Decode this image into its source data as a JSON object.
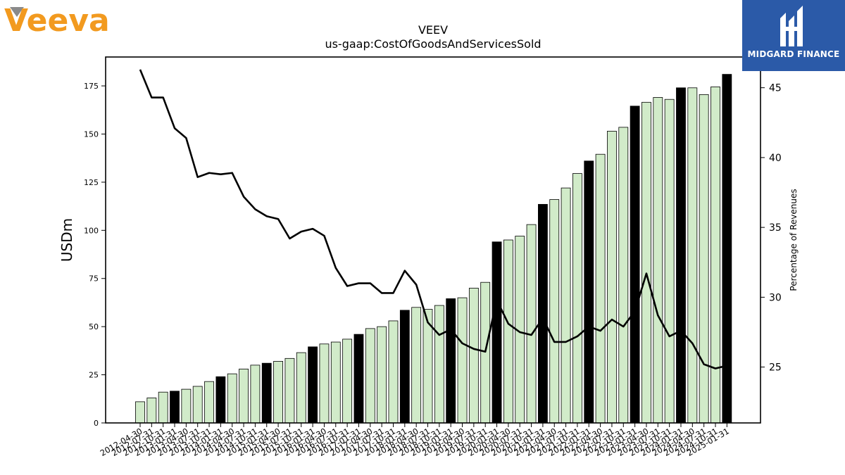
{
  "header": {
    "brand": "Veeva",
    "partner": "MIDGARD FINANCE"
  },
  "colors": {
    "annual_bar": "#000000",
    "quarter_bar": "#d1ebc9",
    "line": "#000000",
    "partner_bg": "#2b5aa8",
    "brand": "#f29a1f"
  },
  "chart_data": {
    "type": "bar",
    "title": "VEEV",
    "subtitle": "us-gaap:CostOfGoodsAndServicesSold",
    "ylabel": "USDm",
    "y2label": "Percentage of Revenues",
    "ylim": [
      0,
      190
    ],
    "y2lim": [
      21,
      47.2
    ],
    "yticks": [
      0,
      25,
      50,
      75,
      100,
      125,
      150,
      175
    ],
    "y2ticks": [
      25,
      30,
      35,
      40,
      45
    ],
    "categories": [
      "2012-04-30",
      "2012-07-31",
      "2012-10-31",
      "2013-01-31",
      "2013-04-30",
      "2013-07-31",
      "2013-10-31",
      "2014-01-31",
      "2014-04-30",
      "2014-07-31",
      "2014-10-31",
      "2015-01-31",
      "2015-04-30",
      "2015-07-31",
      "2015-10-31",
      "2016-01-31",
      "2016-04-30",
      "2016-07-31",
      "2016-10-31",
      "2017-01-31",
      "2017-04-30",
      "2017-07-31",
      "2017-10-31",
      "2018-01-31",
      "2018-04-30",
      "2018-07-31",
      "2018-10-31",
      "2019-01-31",
      "2019-04-30",
      "2019-07-31",
      "2019-10-31",
      "2020-01-31",
      "2020-04-30",
      "2020-07-31",
      "2020-10-31",
      "2021-01-31",
      "2021-04-30",
      "2021-07-31",
      "2021-10-31",
      "2022-01-31",
      "2022-04-30",
      "2022-07-31",
      "2022-10-31",
      "2023-01-31",
      "2023-04-30",
      "2023-07-31",
      "2023-10-31",
      "2024-01-31",
      "2024-04-30",
      "2024-07-31",
      "2024-10-31",
      "2025-01-31"
    ],
    "series": [
      {
        "name": "Cost of goods and services sold",
        "kind": "bar",
        "axis": "left",
        "values": [
          11,
          13,
          16,
          16.5,
          17.5,
          19,
          21.5,
          24,
          25.5,
          28,
          30,
          31,
          32,
          33.5,
          36.5,
          39.5,
          41,
          42,
          43.5,
          46,
          49,
          50,
          53,
          58.5,
          60,
          59,
          61,
          64.5,
          65,
          70,
          73,
          94,
          95,
          97,
          103,
          113.5,
          116,
          122,
          129.5,
          136,
          139.5,
          151.5,
          153.5,
          164.5,
          166.5,
          169,
          168,
          174,
          174,
          170.5,
          174.5,
          181
        ],
        "annual": [
          false,
          false,
          false,
          true,
          false,
          false,
          false,
          true,
          false,
          false,
          false,
          true,
          false,
          false,
          false,
          true,
          false,
          false,
          false,
          true,
          false,
          false,
          false,
          true,
          false,
          false,
          false,
          true,
          false,
          false,
          false,
          true,
          false,
          false,
          false,
          true,
          false,
          false,
          false,
          true,
          false,
          false,
          false,
          true,
          false,
          false,
          false,
          true,
          false,
          false,
          false,
          true
        ]
      },
      {
        "name": "Percentage of revenues",
        "kind": "line",
        "axis": "right",
        "values": [
          46.3,
          44.3,
          44.3,
          42.1,
          41.4,
          38.6,
          38.9,
          38.8,
          38.9,
          37.2,
          36.3,
          35.8,
          35.6,
          34.2,
          34.7,
          34.9,
          34.4,
          32.1,
          30.8,
          31.0,
          31.0,
          30.3,
          30.3,
          31.9,
          30.9,
          28.2,
          27.3,
          27.7,
          26.7,
          26.3,
          26.1,
          29.8,
          28.1,
          27.5,
          27.3,
          28.5,
          26.8,
          26.8,
          27.2,
          27.9,
          27.6,
          28.4,
          27.9,
          29.0,
          31.7,
          28.7,
          27.2,
          27.6,
          26.7,
          25.2,
          24.9,
          25.1
        ]
      }
    ]
  }
}
